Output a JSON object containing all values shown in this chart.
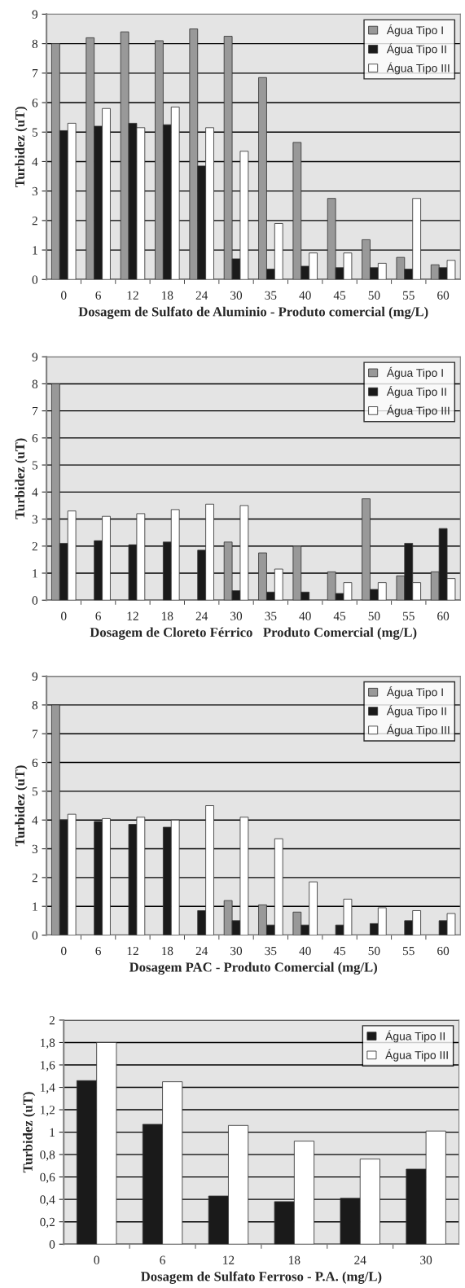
{
  "chart_data": [
    {
      "type": "bar",
      "xlabel": "Dosagem de Sulfato de Aluminio - Produto comercial (mg/L)",
      "ylabel": "Turbidez (uT)",
      "categories": [
        "0",
        "6",
        "12",
        "18",
        "24",
        "30",
        "35",
        "40",
        "45",
        "50",
        "55",
        "60"
      ],
      "ylim": [
        0,
        9
      ],
      "yticks": [
        0,
        1,
        2,
        3,
        4,
        5,
        6,
        7,
        8,
        9
      ],
      "grid": "y",
      "legend": "top right",
      "series": [
        {
          "name": "Água Tipo I",
          "color": "#999999",
          "values": [
            8.0,
            8.2,
            8.4,
            8.1,
            8.5,
            8.25,
            6.85,
            4.65,
            2.75,
            1.35,
            0.75,
            0.5
          ]
        },
        {
          "name": "Água Tipo II",
          "color": "#1a1a1a",
          "values": [
            5.05,
            5.2,
            5.3,
            5.25,
            3.85,
            0.7,
            0.35,
            0.45,
            0.4,
            0.4,
            0.35,
            0.4
          ]
        },
        {
          "name": "Água Tipo III",
          "color": "#ffffff",
          "values": [
            5.3,
            5.8,
            5.15,
            5.85,
            5.15,
            4.35,
            1.9,
            0.9,
            0.9,
            0.55,
            2.75,
            0.65
          ]
        }
      ]
    },
    {
      "type": "bar",
      "xlabel": "Dosagem de Cloreto Férrico   Produto Comercial (mg/L)",
      "ylabel": "Turbidez (uT)",
      "categories": [
        "0",
        "6",
        "12",
        "18",
        "24",
        "30",
        "35",
        "40",
        "45",
        "50",
        "55",
        "60"
      ],
      "ylim": [
        0,
        9
      ],
      "yticks": [
        0,
        1,
        2,
        3,
        4,
        5,
        6,
        7,
        8,
        9
      ],
      "grid": "y",
      "legend": "top right",
      "series": [
        {
          "name": "Água Tipo I",
          "color": "#999999",
          "values": [
            8.0,
            null,
            null,
            null,
            null,
            2.15,
            1.75,
            2.0,
            1.05,
            3.75,
            0.9,
            1.05
          ]
        },
        {
          "name": "Água Tipo II",
          "color": "#1a1a1a",
          "values": [
            2.1,
            2.2,
            2.05,
            2.15,
            1.85,
            0.35,
            0.3,
            0.3,
            0.25,
            0.4,
            2.1,
            2.65
          ]
        },
        {
          "name": "Água Tipo III",
          "color": "#ffffff",
          "values": [
            3.3,
            3.1,
            3.2,
            3.35,
            3.55,
            3.5,
            1.15,
            null,
            0.65,
            0.65,
            0.65,
            0.8
          ]
        }
      ]
    },
    {
      "type": "bar",
      "xlabel": "Dosagem PAC - Produto Comercial (mg/L)",
      "ylabel": "Turbidez (uT)",
      "categories": [
        "0",
        "6",
        "12",
        "18",
        "24",
        "30",
        "35",
        "40",
        "45",
        "50",
        "55",
        "60"
      ],
      "ylim": [
        0,
        9
      ],
      "yticks": [
        0,
        1,
        2,
        3,
        4,
        5,
        6,
        7,
        8,
        9
      ],
      "grid": "y",
      "legend": "top right",
      "series": [
        {
          "name": "Água Tipo I",
          "color": "#999999",
          "values": [
            8.0,
            null,
            null,
            null,
            null,
            1.2,
            1.05,
            0.8,
            null,
            null,
            null,
            null
          ]
        },
        {
          "name": "Água Tipo II",
          "color": "#1a1a1a",
          "values": [
            4.0,
            3.95,
            3.85,
            3.75,
            0.85,
            0.5,
            0.35,
            0.35,
            0.35,
            0.4,
            0.5,
            0.5
          ]
        },
        {
          "name": "Água Tipo III",
          "color": "#ffffff",
          "values": [
            4.2,
            4.05,
            4.1,
            4.0,
            4.5,
            4.1,
            3.35,
            1.85,
            1.25,
            0.95,
            0.85,
            0.75
          ]
        }
      ]
    },
    {
      "type": "bar",
      "xlabel": "Dosagem de Sulfato Ferroso - P.A. (mg/L)",
      "ylabel": "Turbidez (uT)",
      "categories": [
        "0",
        "6",
        "12",
        "18",
        "24",
        "30"
      ],
      "ylim": [
        0,
        2
      ],
      "yticks": [
        0,
        {
          "value": 0.2,
          "label": "0,2"
        },
        {
          "value": 0.4,
          "label": "0,4"
        },
        {
          "value": 0.6,
          "label": "0,6"
        },
        {
          "value": 0.8,
          "label": "0,8"
        },
        1,
        {
          "value": 1.2,
          "label": "1,2"
        },
        {
          "value": 1.4,
          "label": "1,4"
        },
        {
          "value": 1.6,
          "label": "1,6"
        },
        {
          "value": 1.8,
          "label": "1,8"
        },
        2
      ],
      "grid": "y",
      "legend": "top right",
      "series": [
        {
          "name": "Água Tipo II",
          "color": "#1a1a1a",
          "values": [
            1.46,
            1.07,
            0.43,
            0.38,
            0.41,
            0.67
          ]
        },
        {
          "name": "Água Tipo III",
          "color": "#ffffff",
          "values": [
            1.8,
            1.45,
            1.06,
            0.92,
            0.76,
            1.01
          ]
        }
      ]
    }
  ]
}
